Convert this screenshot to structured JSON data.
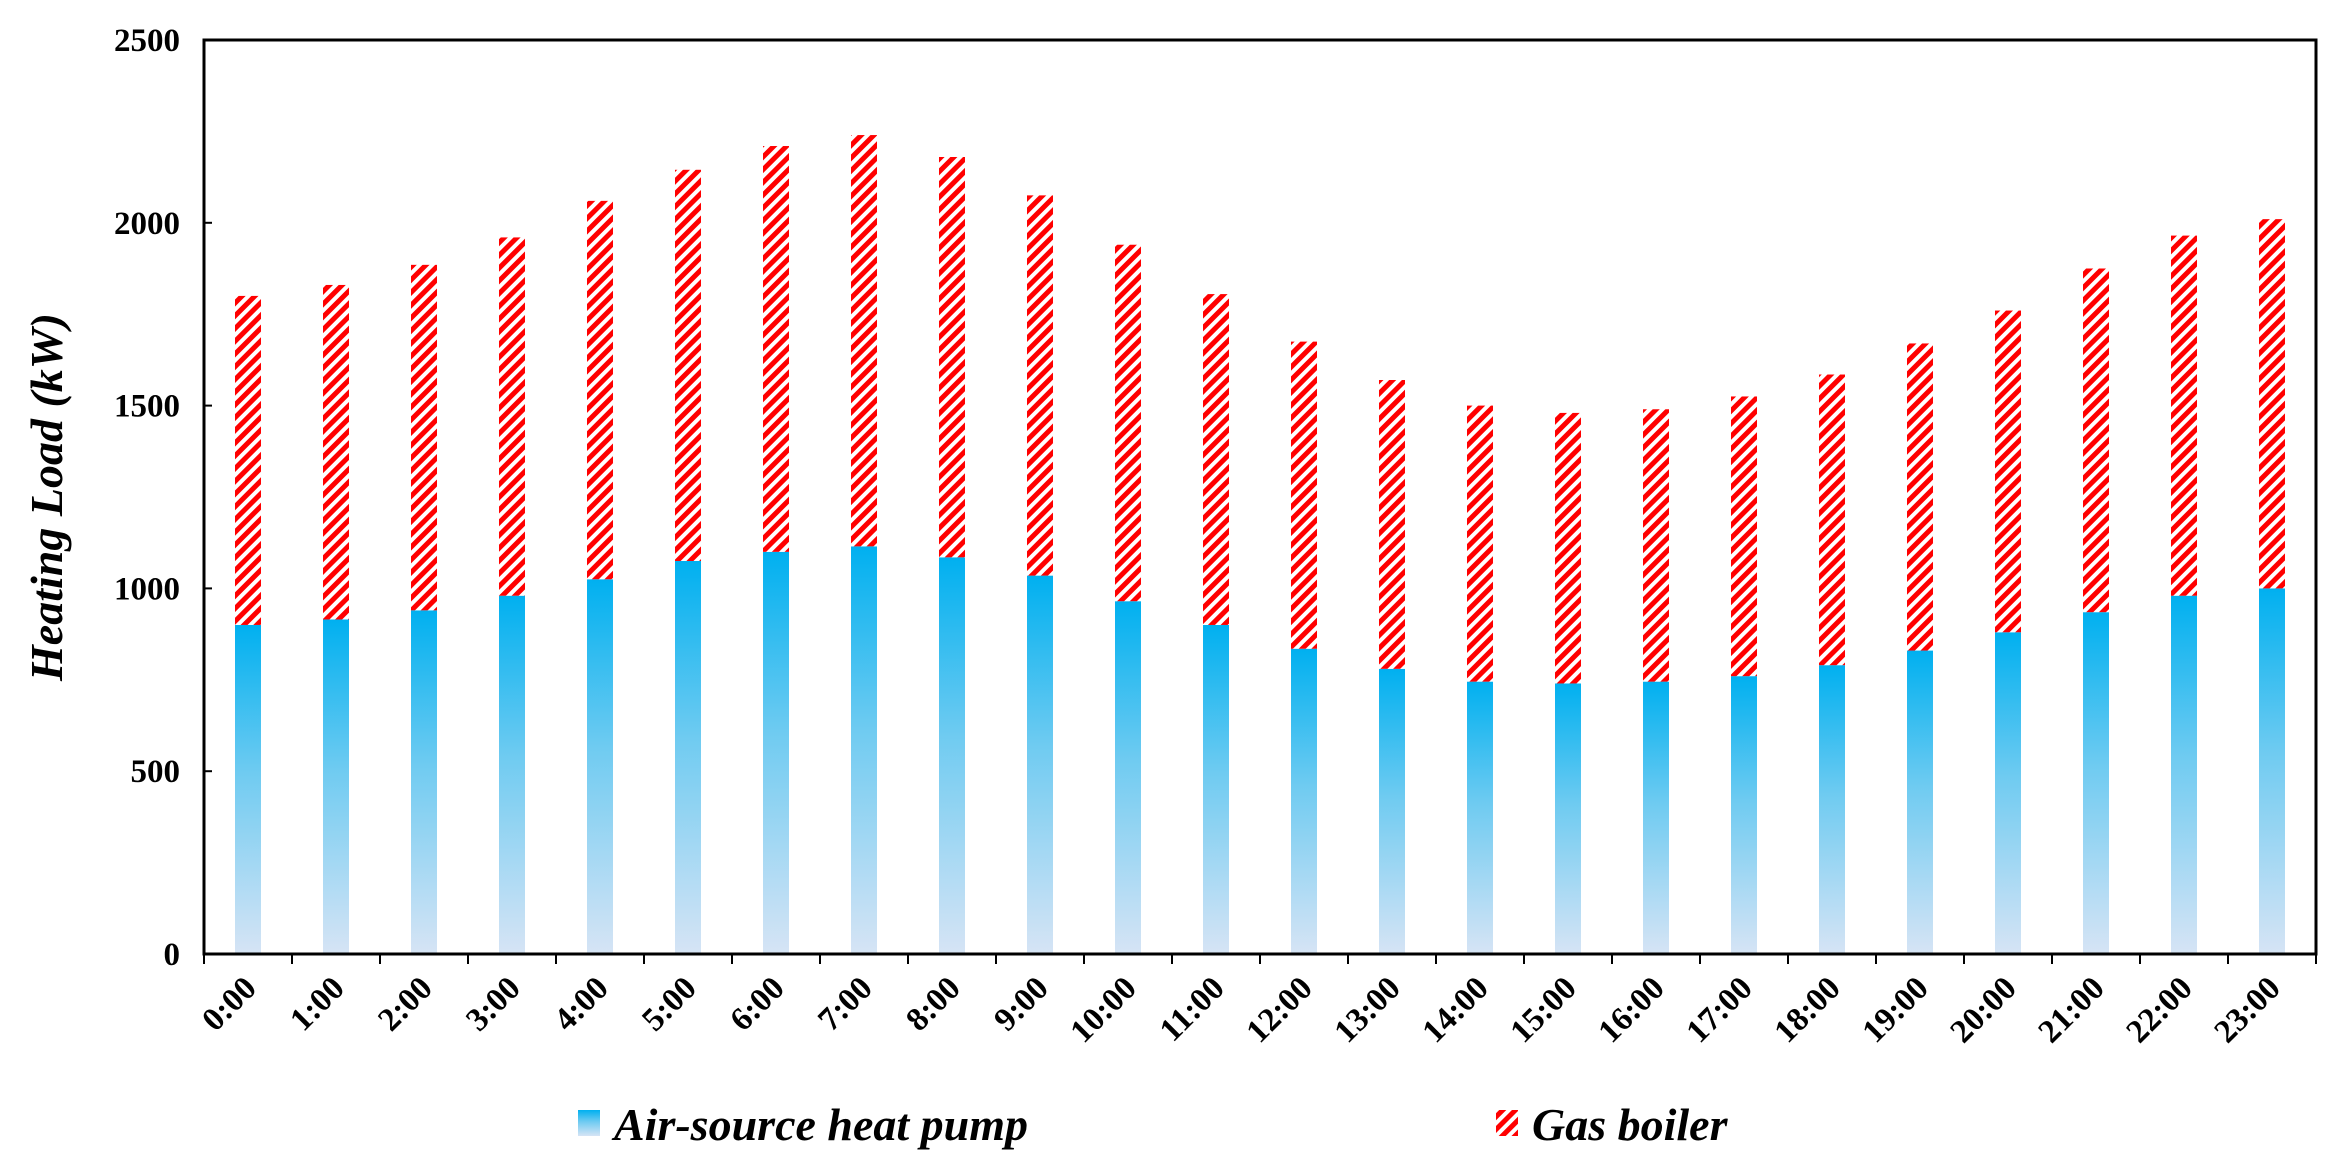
{
  "chart_data": {
    "type": "bar",
    "stacked": true,
    "title": "",
    "xlabel": "",
    "ylabel": "Heating Load (kW)",
    "ylim": [
      0,
      2500
    ],
    "yticks": [
      "0",
      "500",
      "1000",
      "1500",
      "2000",
      "2500"
    ],
    "grid": false,
    "legend_position": "bottom",
    "categories": [
      "0:00",
      "1:00",
      "2:00",
      "3:00",
      "4:00",
      "5:00",
      "6:00",
      "7:00",
      "8:00",
      "9:00",
      "10:00",
      "11:00",
      "12:00",
      "13:00",
      "14:00",
      "15:00",
      "16:00",
      "17:00",
      "18:00",
      "19:00",
      "20:00",
      "21:00",
      "22:00",
      "23:00"
    ],
    "series": [
      {
        "name": "Air-source heat pump",
        "color": "#00b0f0",
        "color_light": "#d6e4f5",
        "pattern": "gradient",
        "values": [
          900,
          915,
          940,
          980,
          1025,
          1075,
          1100,
          1115,
          1085,
          1035,
          965,
          900,
          835,
          780,
          745,
          740,
          745,
          760,
          790,
          830,
          880,
          935,
          980,
          1000
        ]
      },
      {
        "name": "Gas boiler",
        "color": "#ff0000",
        "pattern": "diagonal-stripes",
        "values": [
          900,
          915,
          945,
          980,
          1035,
          1070,
          1110,
          1125,
          1095,
          1040,
          975,
          905,
          840,
          790,
          755,
          740,
          745,
          765,
          795,
          840,
          880,
          940,
          985,
          1010
        ]
      }
    ]
  }
}
